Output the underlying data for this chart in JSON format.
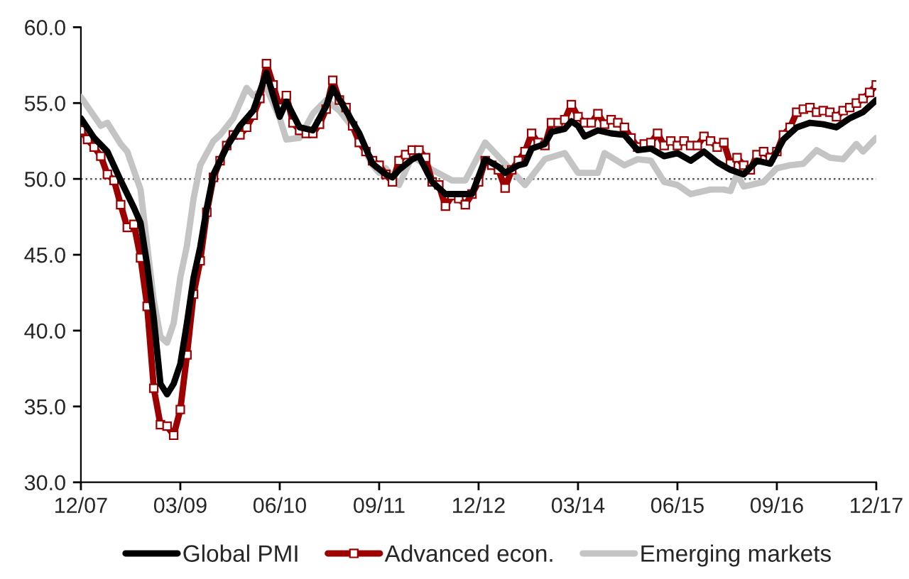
{
  "chart_data": {
    "type": "line",
    "x": [
      "2007-12",
      "2008-01",
      "2008-02",
      "2008-03",
      "2008-04",
      "2008-05",
      "2008-06",
      "2008-07",
      "2008-08",
      "2008-09",
      "2008-10",
      "2008-11",
      "2008-12",
      "2009-01",
      "2009-02",
      "2009-03",
      "2009-04",
      "2009-05",
      "2009-06",
      "2009-07",
      "2009-08",
      "2009-09",
      "2009-10",
      "2009-11",
      "2009-12",
      "2010-01",
      "2010-02",
      "2010-03",
      "2010-04",
      "2010-05",
      "2010-06",
      "2010-07",
      "2010-08",
      "2010-09",
      "2010-10",
      "2010-11",
      "2010-12",
      "2011-01",
      "2011-02",
      "2011-03",
      "2011-04",
      "2011-05",
      "2011-06",
      "2011-07",
      "2011-08",
      "2011-09",
      "2011-10",
      "2011-11",
      "2011-12",
      "2012-01",
      "2012-02",
      "2012-03",
      "2012-04",
      "2012-05",
      "2012-06",
      "2012-07",
      "2012-08",
      "2012-09",
      "2012-10",
      "2012-11",
      "2012-12",
      "2013-01",
      "2013-02",
      "2013-03",
      "2013-04",
      "2013-05",
      "2013-06",
      "2013-07",
      "2013-08",
      "2013-09",
      "2013-10",
      "2013-11",
      "2013-12",
      "2014-01",
      "2014-02",
      "2014-03",
      "2014-04",
      "2014-05",
      "2014-06",
      "2014-07",
      "2014-08",
      "2014-09",
      "2014-10",
      "2014-11",
      "2014-12",
      "2015-01",
      "2015-02",
      "2015-03",
      "2015-04",
      "2015-05",
      "2015-06",
      "2015-07",
      "2015-08",
      "2015-09",
      "2015-10",
      "2015-11",
      "2015-12",
      "2016-01",
      "2016-02",
      "2016-03",
      "2016-04",
      "2016-05",
      "2016-06",
      "2016-07",
      "2016-08",
      "2016-09",
      "2016-10",
      "2016-11",
      "2016-12",
      "2017-01",
      "2017-02",
      "2017-03",
      "2017-04",
      "2017-05",
      "2017-06",
      "2017-07",
      "2017-08",
      "2017-09",
      "2017-10",
      "2017-11",
      "2017-12"
    ],
    "series": [
      {
        "name": "Global PMI",
        "color": "#000000",
        "marker": "none",
        "x": [
          "2007-12",
          "2008-02",
          "2008-04",
          "2008-06",
          "2008-08",
          "2008-09",
          "2008-10",
          "2008-11",
          "2008-12",
          "2009-01",
          "2009-02",
          "2009-03",
          "2009-04",
          "2009-05",
          "2009-06",
          "2009-07",
          "2009-08",
          "2009-10",
          "2009-12",
          "2010-02",
          "2010-04",
          "2010-05",
          "2010-06",
          "2010-07",
          "2010-09",
          "2010-11",
          "2011-01",
          "2011-02",
          "2011-04",
          "2011-06",
          "2011-08",
          "2011-10",
          "2011-11",
          "2011-12",
          "2012-02",
          "2012-03",
          "2012-05",
          "2012-07",
          "2012-09",
          "2012-11",
          "2013-01",
          "2013-03",
          "2013-04",
          "2013-06",
          "2013-07",
          "2013-08",
          "2013-10",
          "2013-11",
          "2014-01",
          "2014-02",
          "2014-03",
          "2014-04",
          "2014-06",
          "2014-08",
          "2014-10",
          "2014-12",
          "2015-02",
          "2015-04",
          "2015-06",
          "2015-08",
          "2015-10",
          "2015-12",
          "2016-02",
          "2016-04",
          "2016-06",
          "2016-08",
          "2016-10",
          "2016-12",
          "2017-02",
          "2017-04",
          "2017-06",
          "2017-08",
          "2017-10",
          "2017-12"
        ],
        "values": [
          54.0,
          52.7,
          51.8,
          49.9,
          48.1,
          47.1,
          44.3,
          40.8,
          36.5,
          35.8,
          36.5,
          37.8,
          40.5,
          43.5,
          45.5,
          48.1,
          50.3,
          52.1,
          53.5,
          54.5,
          57.0,
          55.5,
          54.1,
          55.1,
          53.4,
          53.2,
          54.8,
          56.0,
          54.5,
          53.0,
          51.0,
          50.3,
          50.1,
          50.6,
          51.3,
          51.5,
          49.8,
          49.0,
          49.0,
          49.0,
          51.3,
          50.8,
          50.4,
          50.9,
          51.0,
          52.0,
          52.3,
          53.1,
          53.3,
          53.8,
          53.5,
          52.8,
          53.2,
          53.0,
          52.9,
          51.9,
          52.0,
          51.5,
          51.7,
          51.2,
          51.8,
          51.1,
          50.6,
          50.3,
          51.2,
          51.0,
          52.6,
          53.4,
          53.7,
          53.6,
          53.4,
          54.0,
          54.4,
          55.2
        ]
      },
      {
        "name": "Advanced econ.",
        "color": "#9c0000",
        "marker": "square",
        "values": [
          53.2,
          52.6,
          52.1,
          51.5,
          50.3,
          49.9,
          48.3,
          46.8,
          47.0,
          44.8,
          41.6,
          36.2,
          33.8,
          33.7,
          33.1,
          34.8,
          38.4,
          42.4,
          44.6,
          47.8,
          50.1,
          51.2,
          52.2,
          52.9,
          52.9,
          53.4,
          54.2,
          55.3,
          57.6,
          56.2,
          54.7,
          55.5,
          53.7,
          53.2,
          53.0,
          53.0,
          53.6,
          54.6,
          56.5,
          55.2,
          54.7,
          53.5,
          52.4,
          51.8,
          51.2,
          50.9,
          50.3,
          49.8,
          51.2,
          51.6,
          51.9,
          51.9,
          51.4,
          49.8,
          49.6,
          48.2,
          48.9,
          48.7,
          48.3,
          49.0,
          49.8,
          51.2,
          50.9,
          50.6,
          49.4,
          50.6,
          51.2,
          51.8,
          53.0,
          52.4,
          52.2,
          53.7,
          53.7,
          53.9,
          54.9,
          54.1,
          53.7,
          53.7,
          54.3,
          53.6,
          53.9,
          53.7,
          53.4,
          52.7,
          52.1,
          52.3,
          52.4,
          53.0,
          52.2,
          52.5,
          52.2,
          52.5,
          52.2,
          52.2,
          52.8,
          52.5,
          52.1,
          52.4,
          51.0,
          51.4,
          50.9,
          50.6,
          51.6,
          51.8,
          51.4,
          51.8,
          52.9,
          53.4,
          54.4,
          54.6,
          54.7,
          54.4,
          54.5,
          54.4,
          54.1,
          54.5,
          54.7,
          55.0,
          55.3,
          55.7,
          56.2
        ]
      },
      {
        "name": "Emerging markets",
        "color": "#c4c4c4",
        "marker": "none",
        "x": [
          "2007-12",
          "2008-03",
          "2008-04",
          "2008-06",
          "2008-07",
          "2008-09",
          "2008-10",
          "2008-11",
          "2008-12",
          "2009-01",
          "2009-02",
          "2009-03",
          "2009-04",
          "2009-05",
          "2009-06",
          "2009-08",
          "2009-09",
          "2009-11",
          "2010-01",
          "2010-02",
          "2010-04",
          "2010-06",
          "2010-07",
          "2010-09",
          "2010-11",
          "2011-01",
          "2011-03",
          "2011-05",
          "2011-08",
          "2011-09",
          "2011-10",
          "2011-12",
          "2012-02",
          "2012-05",
          "2012-08",
          "2012-10",
          "2013-01",
          "2013-04",
          "2013-07",
          "2013-10",
          "2014-01",
          "2014-03",
          "2014-06",
          "2014-07",
          "2014-10",
          "2014-12",
          "2015-02",
          "2015-04",
          "2015-06",
          "2015-08",
          "2015-11",
          "2016-01",
          "2016-02",
          "2016-03",
          "2016-04",
          "2016-07",
          "2016-09",
          "2016-11",
          "2017-01",
          "2017-03",
          "2017-05",
          "2017-07",
          "2017-09",
          "2017-10",
          "2017-12"
        ],
        "values": [
          55.4,
          53.5,
          53.7,
          52.3,
          51.8,
          49.3,
          45.6,
          42.0,
          39.6,
          39.2,
          40.5,
          43.5,
          45.6,
          48.7,
          50.9,
          52.5,
          52.9,
          54.0,
          56.0,
          55.5,
          56.0,
          54.0,
          52.6,
          52.7,
          54.3,
          55.2,
          54.5,
          53.4,
          50.9,
          50.4,
          50.7,
          49.6,
          51.5,
          50.6,
          49.9,
          49.9,
          52.4,
          51.0,
          49.6,
          51.3,
          51.7,
          50.4,
          50.4,
          51.7,
          50.9,
          51.3,
          51.2,
          49.8,
          49.6,
          49.0,
          49.3,
          49.3,
          49.2,
          50.3,
          49.5,
          49.8,
          50.7,
          50.9,
          51.0,
          51.9,
          51.4,
          51.3,
          52.3,
          51.8,
          52.7
        ]
      }
    ],
    "xlim": [
      "2007-12",
      "2017-12"
    ],
    "xticks": [
      {
        "value": "2007-12",
        "label": "12/07"
      },
      {
        "value": "2009-03",
        "label": "03/09"
      },
      {
        "value": "2010-06",
        "label": "06/10"
      },
      {
        "value": "2011-09",
        "label": "09/11"
      },
      {
        "value": "2012-12",
        "label": "12/12"
      },
      {
        "value": "2014-03",
        "label": "03/14"
      },
      {
        "value": "2015-06",
        "label": "06/15"
      },
      {
        "value": "2016-09",
        "label": "09/16"
      },
      {
        "value": "2017-12",
        "label": "12/17"
      }
    ],
    "ylim": [
      30,
      60
    ],
    "yticks": [
      {
        "value": 30,
        "label": "30.0"
      },
      {
        "value": 35,
        "label": "35.0"
      },
      {
        "value": 40,
        "label": "40.0"
      },
      {
        "value": 45,
        "label": "45.0"
      },
      {
        "value": 50,
        "label": "50.0"
      },
      {
        "value": 55,
        "label": "55.0"
      },
      {
        "value": 60,
        "label": "60.0"
      }
    ],
    "ref_lines": [
      {
        "axis": "y",
        "value": 50,
        "color": "#555555",
        "line_style": "dotted"
      }
    ],
    "grid": false,
    "legend": "bottom",
    "line_style": "solid"
  }
}
